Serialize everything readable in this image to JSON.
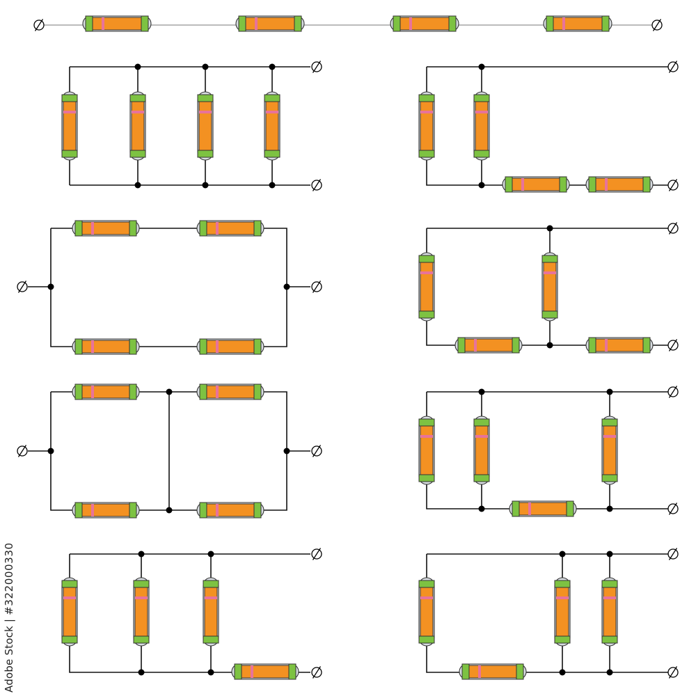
{
  "stock_watermark": {
    "brand": "Adobe Stock",
    "separator": "|",
    "id": "#322000330"
  },
  "colors": {
    "resistor_body": "#f39122",
    "resistor_cap": "#7dc242",
    "resistor_band": "#e8739a",
    "wire": "#111111",
    "junction": "#000000",
    "background": "#ffffff"
  },
  "circuits": [
    {
      "name": "series-four-resistors",
      "resistor_count": 4,
      "terminal_count": 2
    },
    {
      "name": "parallel-four-resistors",
      "resistor_count": 4,
      "terminal_count": 2
    },
    {
      "name": "two-parallel-then-two-series",
      "resistor_count": 4,
      "terminal_count": 2
    },
    {
      "name": "two-series-branches-in-parallel",
      "resistor_count": 4,
      "terminal_count": 2
    },
    {
      "name": "ladder-network",
      "resistor_count": 4,
      "terminal_count": 2
    },
    {
      "name": "bridged-series-parallel",
      "resistor_count": 4,
      "terminal_count": 2
    },
    {
      "name": "three-parallel-with-series",
      "resistor_count": 4,
      "terminal_count": 2
    },
    {
      "name": "three-parallel-then-one-series",
      "resistor_count": 4,
      "terminal_count": 2
    },
    {
      "name": "series-then-two-parallel",
      "resistor_count": 4,
      "terminal_count": 2
    }
  ]
}
